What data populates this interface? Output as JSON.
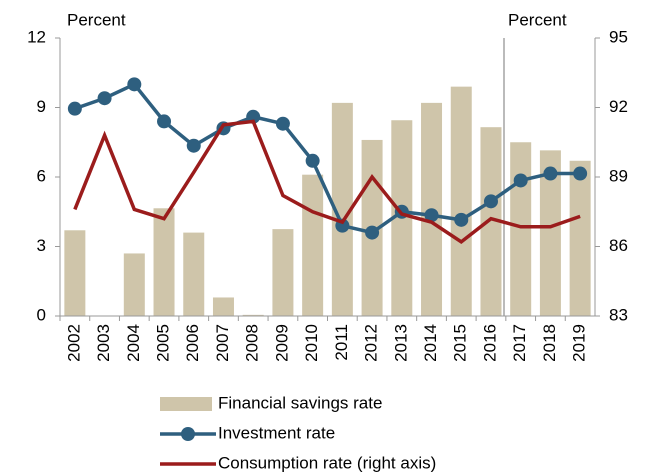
{
  "chart_data": {
    "type": "bar_line",
    "y_label": "Percent",
    "y2_label": "Percent",
    "categories": [
      "2002",
      "2003",
      "2004",
      "2005",
      "2006",
      "2007",
      "2008",
      "2009",
      "2010",
      "2011",
      "2012",
      "2013",
      "2014",
      "2015",
      "2016",
      "2017",
      "2018",
      "2019"
    ],
    "ylim": [
      0,
      12
    ],
    "yticks": [
      0,
      3,
      6,
      9,
      12
    ],
    "y2lim": [
      83,
      95
    ],
    "y2ticks": [
      83,
      86,
      89,
      92,
      95
    ],
    "series": [
      {
        "name": "Financial savings rate",
        "type": "bar",
        "color": "#cfc5aa",
        "values": [
          3.7,
          0,
          2.7,
          4.65,
          3.6,
          0.8,
          0.05,
          3.75,
          6.1,
          9.2,
          7.6,
          8.45,
          9.2,
          9.9,
          8.15,
          7.5,
          7.15,
          6.7
        ]
      },
      {
        "name": "Investment rate",
        "type": "line",
        "marker": true,
        "color": "#2e5f7f",
        "values": [
          8.95,
          9.4,
          10.0,
          8.4,
          7.35,
          8.1,
          8.6,
          8.3,
          6.7,
          3.9,
          3.6,
          4.5,
          4.35,
          4.15,
          4.95,
          5.85,
          6.15,
          6.15
        ]
      },
      {
        "name": "Consumption rate (right axis)",
        "type": "line",
        "marker": false,
        "axis": "y2",
        "color": "#9b1c1c",
        "values": [
          87.6,
          90.8,
          87.6,
          87.2,
          89.2,
          91.25,
          91.4,
          88.2,
          87.5,
          87.05,
          89.0,
          87.4,
          87.05,
          86.2,
          87.2,
          86.85,
          86.85,
          87.3
        ]
      }
    ]
  }
}
